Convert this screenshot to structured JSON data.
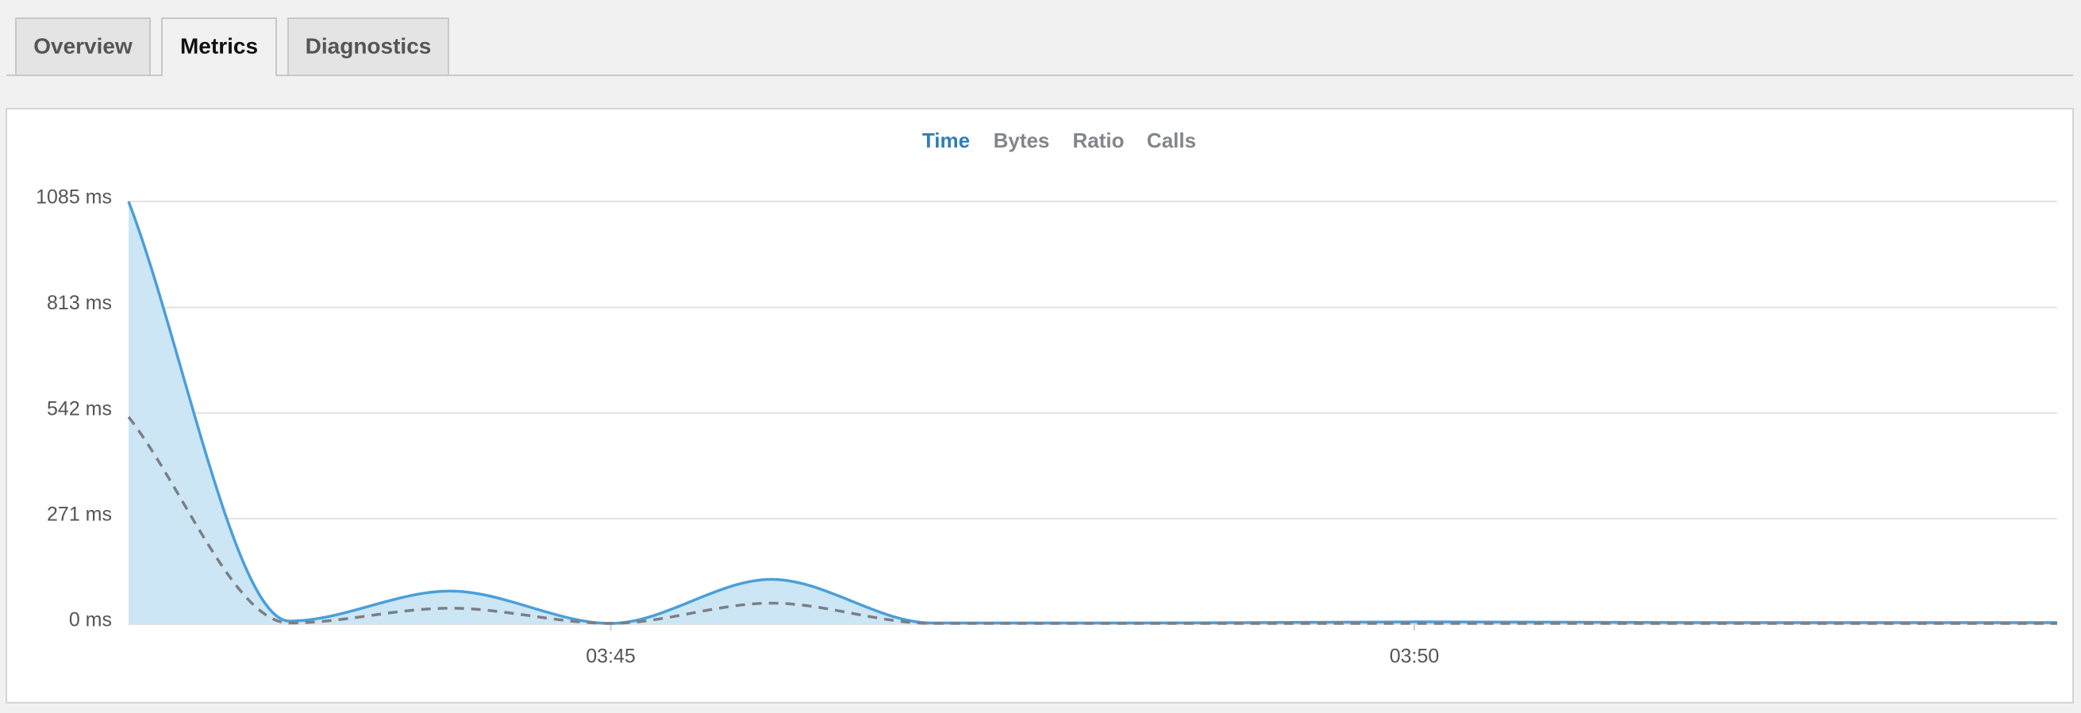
{
  "tabs": [
    {
      "label": "Overview",
      "active": false
    },
    {
      "label": "Metrics",
      "active": true
    },
    {
      "label": "Diagnostics",
      "active": false
    }
  ],
  "chart_data": {
    "type": "line",
    "metrics": [
      {
        "label": "Time",
        "active": true
      },
      {
        "label": "Bytes",
        "active": false
      },
      {
        "label": "Ratio",
        "active": false
      },
      {
        "label": "Calls",
        "active": false
      }
    ],
    "x": [
      "03:42",
      "03:43",
      "03:44",
      "03:45",
      "03:46",
      "03:47",
      "03:48",
      "03:49",
      "03:50",
      "03:51",
      "03:52",
      "03:53",
      "03:54"
    ],
    "series": [
      {
        "color": "#4a9fd9",
        "fill": "#cde6f5",
        "dashed": false,
        "values": [
          1085,
          8,
          85,
          2,
          115,
          3,
          3,
          4,
          6,
          5,
          4,
          4,
          4
        ]
      },
      {
        "color": "#7a7f85",
        "fill": null,
        "dashed": true,
        "values": [
          532,
          3,
          41,
          2,
          54,
          2,
          2,
          2,
          2,
          2,
          2,
          2,
          2
        ]
      }
    ],
    "xlim": [
      "03:42",
      "03:54"
    ],
    "xticks": [
      "03:45",
      "03:50"
    ],
    "ylim": [
      0,
      1085
    ],
    "yticks": [
      {
        "value": 0,
        "label": "0 ms"
      },
      {
        "value": 271,
        "label": "271 ms"
      },
      {
        "value": 542,
        "label": "542 ms"
      },
      {
        "value": 813,
        "label": "813 ms"
      },
      {
        "value": 1085,
        "label": "1085 ms"
      }
    ],
    "grid": true
  }
}
